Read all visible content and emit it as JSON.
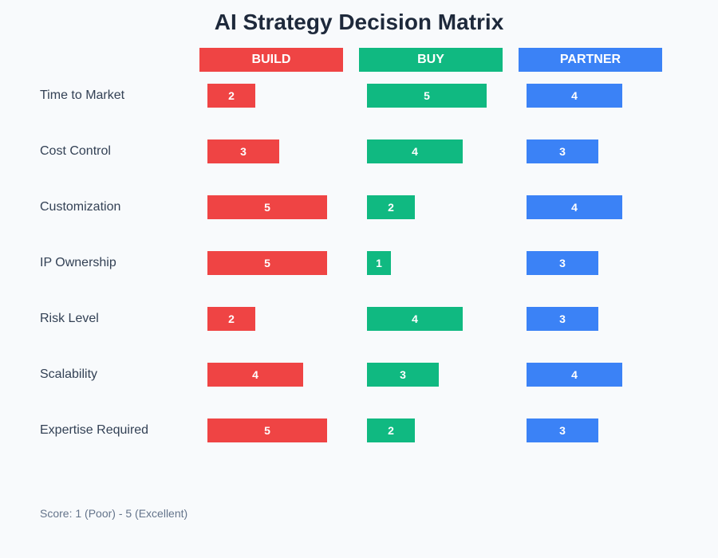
{
  "colors": {
    "build": "#ef4444",
    "buy": "#10b981",
    "partner": "#3b82f6"
  },
  "footnote": "Score: 1 (Poor) - 5 (Excellent)",
  "chart_data": {
    "type": "bar",
    "title": "AI Strategy Decision Matrix",
    "categories": [
      "Time to Market",
      "Cost Control",
      "Customization",
      "IP Ownership",
      "Risk Level",
      "Scalability",
      "Expertise Required"
    ],
    "series": [
      {
        "name": "BUILD",
        "color": "#ef4444",
        "values": [
          2,
          3,
          5,
          5,
          2,
          4,
          5
        ]
      },
      {
        "name": "BUY",
        "color": "#10b981",
        "values": [
          5,
          4,
          2,
          1,
          4,
          3,
          2
        ]
      },
      {
        "name": "PARTNER",
        "color": "#3b82f6",
        "values": [
          4,
          3,
          4,
          3,
          3,
          4,
          3
        ]
      }
    ],
    "xlim": [
      0,
      5
    ],
    "grid": false
  }
}
